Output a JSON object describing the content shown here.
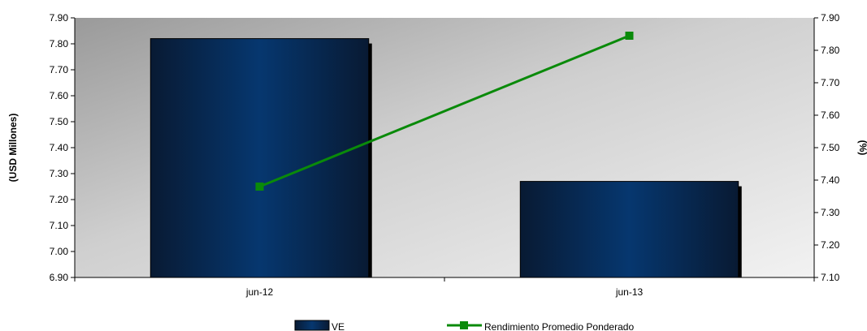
{
  "chart_data": {
    "type": "bar",
    "categories": [
      "jun-12",
      "jun-13"
    ],
    "series": [
      {
        "name": "VE",
        "type": "bar",
        "axis": "left",
        "values": [
          7.82,
          7.27
        ]
      },
      {
        "name": "Rendimiento Promedio Ponderado",
        "type": "line",
        "axis": "right",
        "values": [
          7.38,
          7.845
        ]
      }
    ],
    "ylabel": "(USD Millones)",
    "y2label": "(%)",
    "ylim": [
      6.9,
      7.9
    ],
    "y2lim": [
      7.1,
      7.9
    ],
    "yticks": [
      "6.90",
      "7.00",
      "7.10",
      "7.20",
      "7.30",
      "7.40",
      "7.50",
      "7.60",
      "7.70",
      "7.80",
      "7.90"
    ],
    "y2ticks": [
      "7.10",
      "7.20",
      "7.30",
      "7.40",
      "7.50",
      "7.60",
      "7.70",
      "7.80",
      "7.90"
    ],
    "legend_position": "bottom",
    "colors": {
      "bar": "#0a2a55",
      "bar_center": "#063a78",
      "line": "#0a8a0a"
    }
  }
}
